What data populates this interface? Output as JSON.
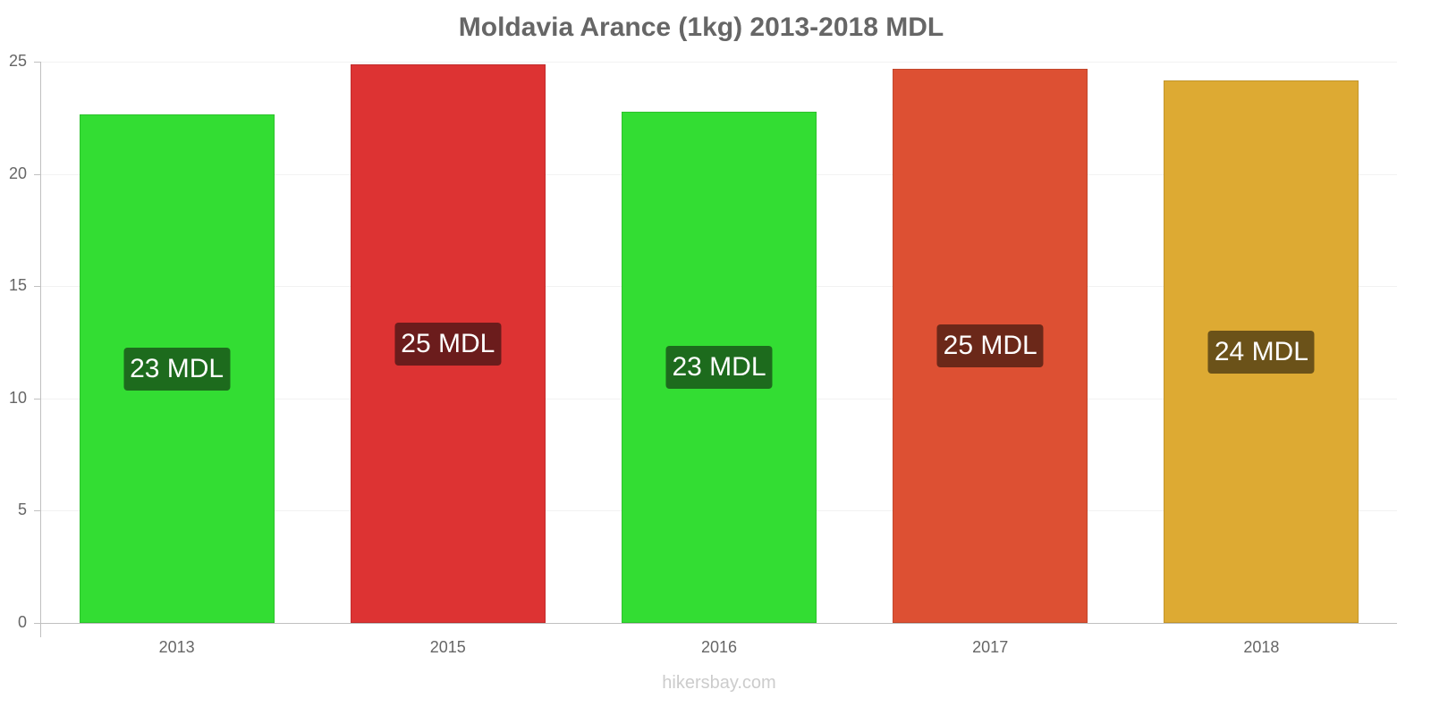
{
  "chart_data": {
    "type": "bar",
    "title": "Moldavia Arance (1kg) 2013-2018 MDL",
    "xlabel": "",
    "ylabel": "",
    "categories": [
      "2013",
      "2015",
      "2016",
      "2017",
      "2018"
    ],
    "values": [
      22.65,
      24.88,
      22.77,
      24.68,
      24.16
    ],
    "data_labels": [
      "23 MDL",
      "25 MDL",
      "23 MDL",
      "25 MDL",
      "24 MDL"
    ],
    "bar_colors": [
      "#33dd33",
      "#dd3333",
      "#33dd33",
      "#dd5033",
      "#ddaa33"
    ],
    "label_bg_colors": [
      "#1d6b1d",
      "#6b1c1c",
      "#1d6b1d",
      "#6b2819",
      "#6b5219"
    ],
    "ylim": [
      0,
      25
    ],
    "yticks": [
      0,
      5,
      10,
      15,
      20,
      25
    ],
    "grid": true,
    "legend": null
  },
  "credit": "hikersbay.com"
}
